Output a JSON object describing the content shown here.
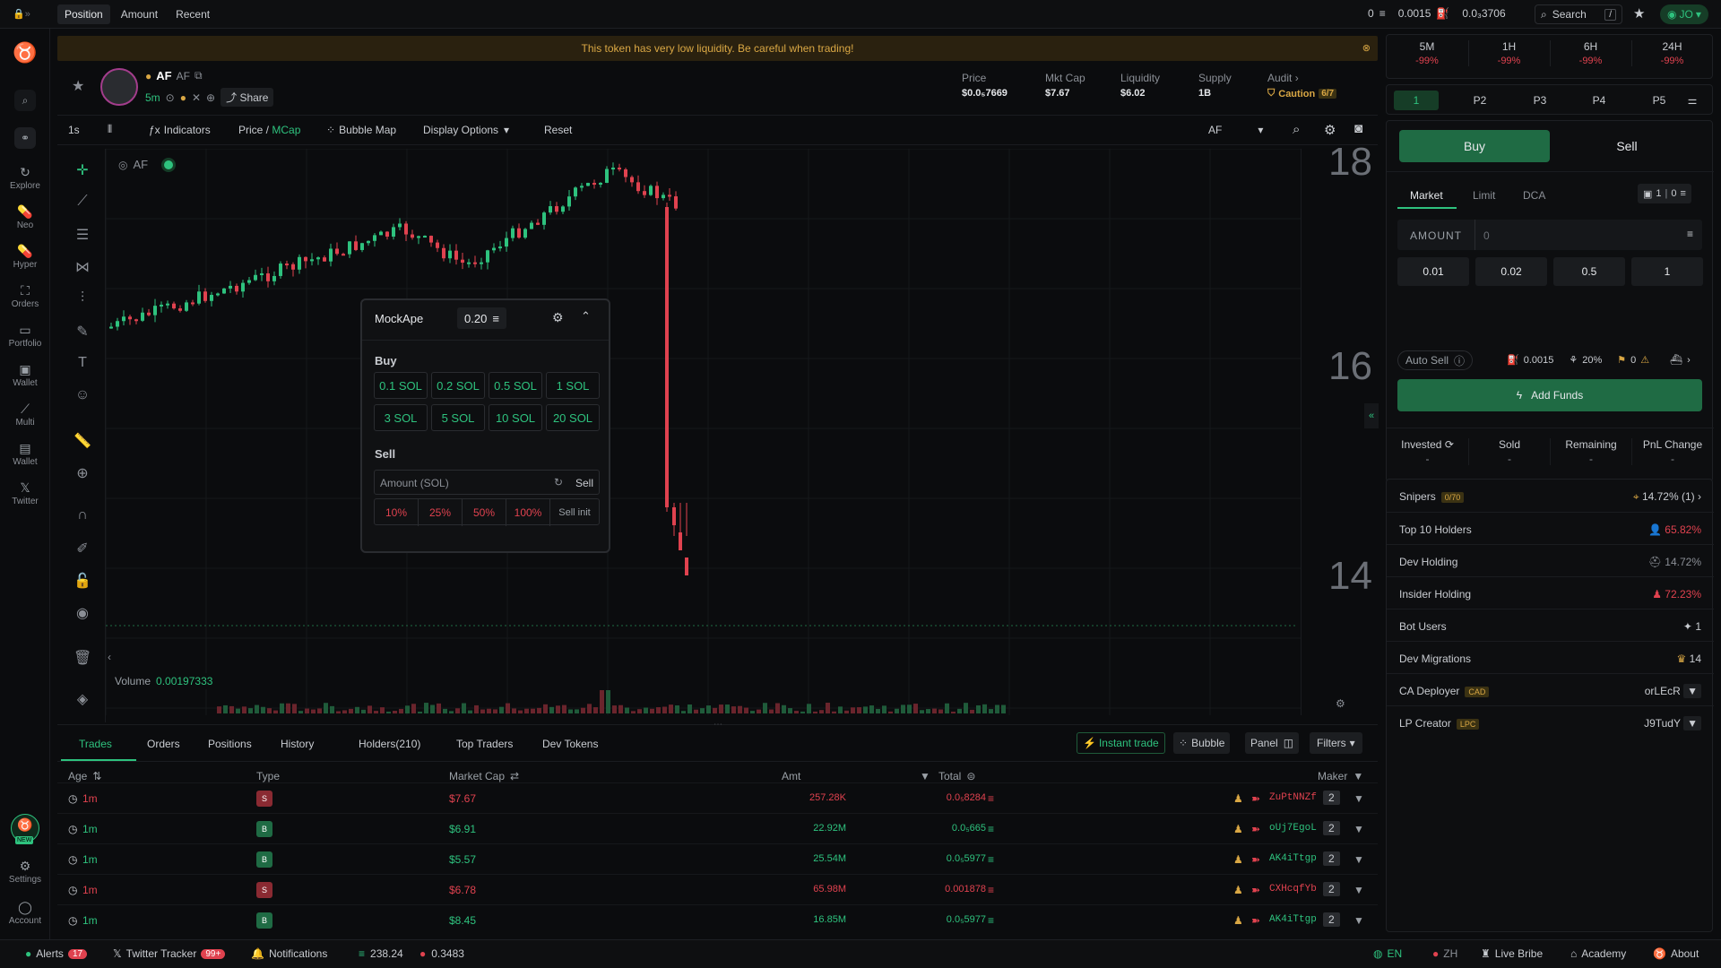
{
  "topbar": {
    "tabs": [
      "Position",
      "Amount",
      "Recent"
    ],
    "stat1": "0",
    "stat2": "0.0015",
    "stat3": "0.0₃3706",
    "search_label": "Search",
    "search_key": "/",
    "user": "JO"
  },
  "sidebar": {
    "items": [
      {
        "label": "Explore",
        "icon": "explore-icon"
      },
      {
        "label": "Neo",
        "icon": "neo-icon"
      },
      {
        "label": "Hyper",
        "icon": "hyper-icon"
      },
      {
        "label": "Orders",
        "icon": "orders-icon"
      },
      {
        "label": "Portfolio",
        "icon": "portfolio-icon"
      },
      {
        "label": "Wallet",
        "icon": "wallet-icon"
      },
      {
        "label": "Multi",
        "icon": "multi-icon"
      },
      {
        "label": "Wallet",
        "icon": "wallet-icon"
      },
      {
        "label": "Twitter",
        "icon": "twitter-icon"
      }
    ],
    "new_badge": "NEW",
    "settings": "Settings",
    "account": "Account"
  },
  "warning": "This token has very low liquidity. Be careful when trading!",
  "token": {
    "symbol": "AF",
    "name": "AF",
    "age": "5m",
    "share": "Share",
    "price_label": "Price",
    "price": "$0.0₅7669",
    "mcap_label": "Mkt Cap",
    "mcap": "$7.67",
    "liq_label": "Liquidity",
    "liq": "$6.02",
    "supply_label": "Supply",
    "supply": "1B",
    "audit_label": "Audit",
    "audit_status": "Caution",
    "audit_score": "6/7"
  },
  "charttools": {
    "interval": "1s",
    "indicators": "Indicators",
    "price": "Price",
    "mcap": "MCap",
    "bubble": "Bubble Map",
    "display": "Display Options",
    "reset": "Reset",
    "symbol": "AF"
  },
  "chart": {
    "legend": "AF",
    "volume_label": "Volume",
    "volume_value": "0.00197333",
    "scale": [
      "18",
      "16",
      "14"
    ]
  },
  "mockape": {
    "title": "MockApe",
    "amount": "0.20",
    "buy_label": "Buy",
    "buy_buttons": [
      "0.1 SOL",
      "0.2 SOL",
      "0.5 SOL",
      "1 SOL",
      "3 SOL",
      "5 SOL",
      "10 SOL",
      "20 SOL"
    ],
    "sell_label": "Sell",
    "sell_placeholder": "Amount (SOL)",
    "sell_btn": "Sell",
    "sell_buttons": [
      "10%",
      "25%",
      "50%",
      "100%"
    ],
    "sell_init": "Sell init"
  },
  "bottom": {
    "tabs": [
      "Trades",
      "Orders",
      "Positions",
      "History",
      "Holders(210)",
      "Top Traders",
      "Dev Tokens"
    ],
    "instant_trade": "Instant trade",
    "bubble": "Bubble",
    "panel": "Panel",
    "filters": "Filters",
    "headers": {
      "age": "Age",
      "type": "Type",
      "mcap": "Market Cap",
      "amt": "Amt",
      "total": "Total",
      "maker": "Maker"
    },
    "rows": [
      {
        "age": "1m",
        "type": "S",
        "mcap": "$7.67",
        "amt": "257.28K",
        "total": "0.0₅8284",
        "maker": "ZuPtNNZf",
        "count": "2"
      },
      {
        "age": "1m",
        "type": "B",
        "mcap": "$6.91",
        "amt": "22.92M",
        "total": "0.0₅665",
        "maker": "oUj7EgoL",
        "count": "2"
      },
      {
        "age": "1m",
        "type": "B",
        "mcap": "$5.57",
        "amt": "25.54M",
        "total": "0.0₅5977",
        "maker": "AK4iTtgp",
        "count": "2"
      },
      {
        "age": "1m",
        "type": "S",
        "mcap": "$6.78",
        "amt": "65.98M",
        "total": "0.001878",
        "maker": "CXHcqfYb",
        "count": "2"
      },
      {
        "age": "1m",
        "type": "B",
        "mcap": "$8.45",
        "amt": "16.85M",
        "total": "0.0₅5977",
        "maker": "AK4iTtgp",
        "count": "2"
      }
    ]
  },
  "right": {
    "timeframes": [
      {
        "label": "5M",
        "value": "-99%"
      },
      {
        "label": "1H",
        "value": "-99%"
      },
      {
        "label": "6H",
        "value": "-99%"
      },
      {
        "label": "24H",
        "value": "-99%"
      }
    ],
    "presets": [
      "1",
      "P2",
      "P3",
      "P4",
      "P5"
    ],
    "buy": "Buy",
    "sell": "Sell",
    "order_tabs": [
      "Market",
      "Limit",
      "DCA"
    ],
    "wallet_count": "1",
    "wallet_bal": "0",
    "amount_label": "AMOUNT",
    "amount_placeholder": "0",
    "quick": [
      "0.01",
      "0.02",
      "0.5",
      "1"
    ],
    "auto_sell": "Auto Sell",
    "fee": "0.0015",
    "slippage": "20%",
    "priority": "0",
    "add_funds": "Add Funds",
    "pnl_labels": [
      "Invested",
      "Sold",
      "Remaining",
      "PnL Change"
    ],
    "pnl_values": [
      "-",
      "-",
      "-",
      "-"
    ],
    "stats": [
      {
        "label": "Snipers",
        "tag": "0/70",
        "value": "14.72% (1)"
      },
      {
        "label": "Top 10 Holders",
        "tag": "",
        "value": "65.82%"
      },
      {
        "label": "Dev Holding",
        "tag": "",
        "value": "14.72%"
      },
      {
        "label": "Insider Holding",
        "tag": "",
        "value": "72.23%"
      },
      {
        "label": "Bot Users",
        "tag": "",
        "value": "1"
      },
      {
        "label": "Dev Migrations",
        "tag": "",
        "value": "14"
      },
      {
        "label": "CA Deployer",
        "tag": "CAD",
        "value": "orLEcR"
      },
      {
        "label": "LP Creator",
        "tag": "LPC",
        "value": "J9TudY"
      }
    ]
  },
  "footer": {
    "alerts": "Alerts",
    "alerts_count": "17",
    "twitter_tracker": "Twitter Tracker",
    "twitter_count": "99+",
    "notifications": "Notifications",
    "sol_price": "238.24",
    "other_price": "0.3483",
    "lang_en": "EN",
    "lang_zh": "ZH",
    "live_bribe": "Live Bribe",
    "academy": "Academy",
    "about": "About"
  },
  "colors": {
    "green": "#2ec27e",
    "red": "#e0424f",
    "gold": "#d9a744",
    "bg": "#0b0c0e"
  }
}
